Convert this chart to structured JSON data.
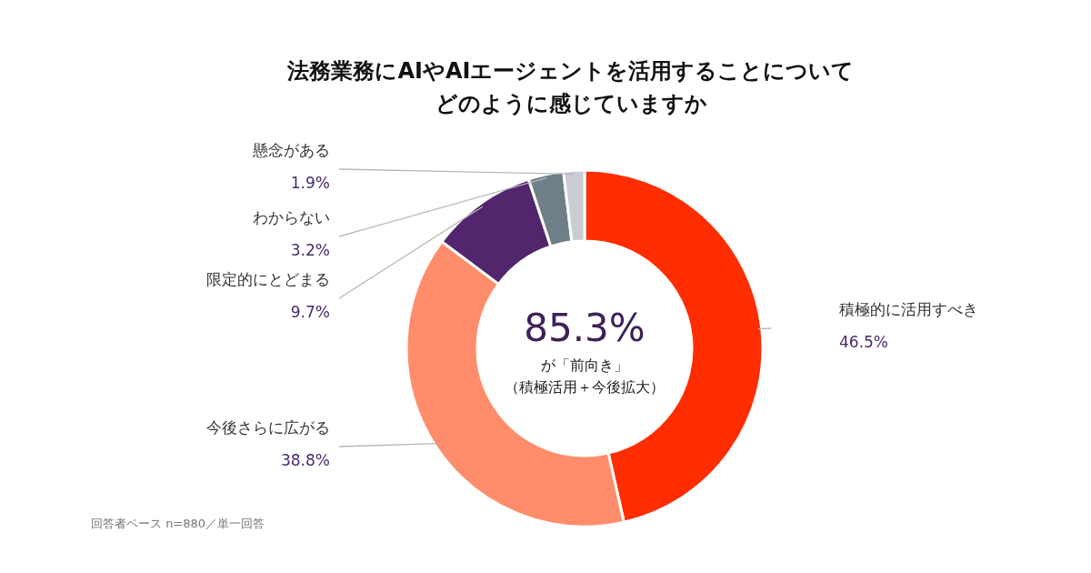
{
  "chart_data": {
    "type": "donut",
    "title": "法務業務にAIやAIエージェントを活用することについてどのように感じていますか",
    "categories": [
      "積極的に活用すべき",
      "今後さらに広がる",
      "限定的にとどまる",
      "わからない",
      "懸念がある"
    ],
    "values": [
      46.5,
      38.8,
      9.7,
      3.2,
      1.9
    ],
    "colors": [
      "#ff2d00",
      "#ff8d6b",
      "#52266d",
      "#6f7f88",
      "#c9ccd3"
    ],
    "value_labels": [
      "46.5%",
      "38.8%",
      "9.7%",
      "3.2%",
      "1.9%"
    ],
    "annotations": [
      "85.3%",
      "が「前向き」",
      "（積極活用＋今後拡大）",
      "回答者ベース n=880／単一回答"
    ]
  }
}
